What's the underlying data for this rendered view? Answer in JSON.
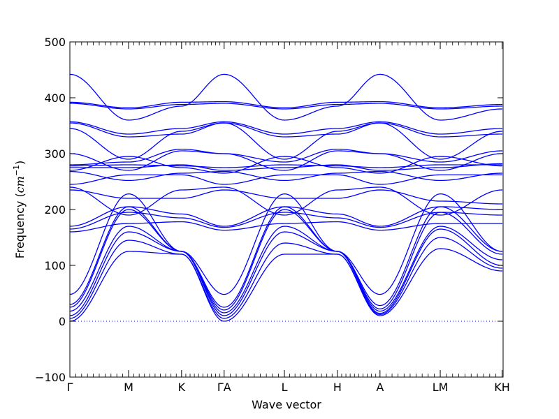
{
  "chart_data": {
    "type": "line",
    "title": "",
    "xlabel": "Wave vector",
    "ylabel_prefix": "Frequency (",
    "ylabel_unit": "cm",
    "ylabel_exponent": "−1",
    "ylabel_suffix": ")",
    "ylim": [
      -100,
      500
    ],
    "yticks": [
      -100,
      0,
      100,
      200,
      300,
      400,
      500
    ],
    "ytick_labels": [
      "−100",
      "0",
      "100",
      "200",
      "300",
      "400",
      "500"
    ],
    "xlim": [
      0,
      8.34
    ],
    "high_symmetry_points": [
      {
        "label": "Γ",
        "x": 0
      },
      {
        "label": "M",
        "x": 1.13
      },
      {
        "label": "K",
        "x": 2.15
      },
      {
        "label": "ΓA",
        "x": 2.97
      },
      {
        "label": "L",
        "x": 4.13
      },
      {
        "label": "H",
        "x": 5.15
      },
      {
        "label": "A",
        "x": 5.97
      },
      {
        "label": "LM",
        "x": 7.13
      },
      {
        "label": "KH",
        "x": 8.32
      }
    ],
    "zero_line": {
      "y": 0,
      "style": "dotted"
    },
    "line_color": "#0000ff",
    "grid": false,
    "legend": "none",
    "series": [
      {
        "y": [
          0,
          125,
          120,
          0,
          120,
          120,
          10,
          130,
          90
        ]
      },
      {
        "y": [
          5,
          145,
          120,
          5,
          140,
          120,
          12,
          150,
          95
        ]
      },
      {
        "y": [
          10,
          160,
          125,
          10,
          160,
          125,
          14,
          165,
          100
        ]
      },
      {
        "y": [
          18,
          170,
          125,
          15,
          170,
          125,
          18,
          170,
          110
        ]
      },
      {
        "y": [
          25,
          200,
          125,
          20,
          200,
          125,
          22,
          195,
          120
        ]
      },
      {
        "y": [
          30,
          205,
          125,
          25,
          205,
          125,
          28,
          205,
          125
        ]
      },
      {
        "y": [
          48,
          228,
          125,
          48,
          228,
          125,
          48,
          228,
          125
        ]
      },
      {
        "y": [
          160,
          175,
          178,
          163,
          175,
          178,
          163,
          175,
          175
        ]
      },
      {
        "y": [
          165,
          195,
          185,
          168,
          195,
          185,
          168,
          195,
          190
        ]
      },
      {
        "y": [
          170,
          205,
          192,
          170,
          205,
          192,
          170,
          205,
          200
        ]
      },
      {
        "y": [
          235,
          220,
          220,
          235,
          220,
          220,
          235,
          215,
          210
        ]
      },
      {
        "y": [
          240,
          190,
          235,
          240,
          190,
          235,
          240,
          190,
          235
        ]
      },
      {
        "y": [
          245,
          262,
          262,
          245,
          262,
          262,
          245,
          262,
          262
        ]
      },
      {
        "y": [
          268,
          252,
          265,
          268,
          252,
          265,
          268,
          252,
          265
        ]
      },
      {
        "y": [
          270,
          295,
          275,
          265,
          295,
          275,
          265,
          295,
          278
        ]
      },
      {
        "y": [
          275,
          275,
          280,
          270,
          275,
          280,
          270,
          275,
          282
        ]
      },
      {
        "y": [
          278,
          280,
          278,
          275,
          280,
          278,
          275,
          280,
          280
        ]
      },
      {
        "y": [
          280,
          285,
          308,
          300,
          285,
          308,
          300,
          285,
          305
        ]
      },
      {
        "y": [
          300,
          270,
          305,
          300,
          270,
          305,
          300,
          270,
          300
        ]
      },
      {
        "y": [
          345,
          290,
          340,
          355,
          290,
          340,
          355,
          290,
          340
        ]
      },
      {
        "y": [
          355,
          330,
          335,
          355,
          330,
          335,
          355,
          330,
          335
        ]
      },
      {
        "y": [
          357,
          335,
          345,
          357,
          335,
          345,
          357,
          335,
          345
        ]
      },
      {
        "y": [
          390,
          380,
          388,
          390,
          380,
          388,
          390,
          380,
          385
        ]
      },
      {
        "y": [
          392,
          382,
          392,
          393,
          382,
          392,
          393,
          382,
          388
        ]
      },
      {
        "y": [
          442,
          360,
          385,
          442,
          360,
          385,
          442,
          360,
          380
        ]
      }
    ]
  }
}
